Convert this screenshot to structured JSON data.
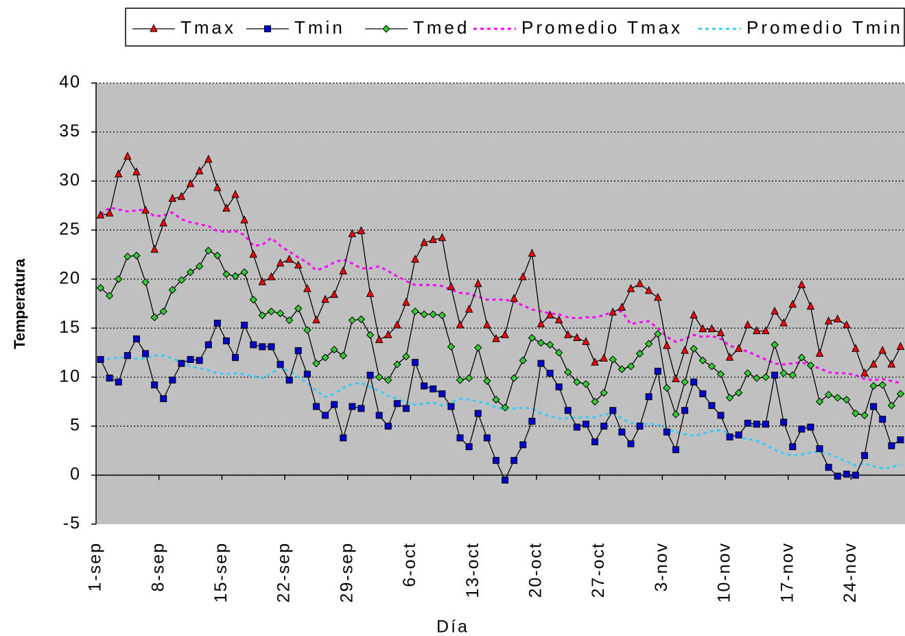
{
  "chart_data": {
    "type": "line",
    "x_label": "Día",
    "y_label": "Temperatura",
    "categories": [
      "1-sep",
      null,
      null,
      null,
      null,
      null,
      null,
      "8-sep",
      null,
      null,
      null,
      null,
      null,
      null,
      "15-sep",
      null,
      null,
      null,
      null,
      null,
      null,
      "22-sep",
      null,
      null,
      null,
      null,
      null,
      null,
      "29-sep",
      null,
      null,
      null,
      null,
      null,
      null,
      "6-oct",
      null,
      null,
      null,
      null,
      null,
      null,
      "13-oct",
      null,
      null,
      null,
      null,
      null,
      null,
      "20-oct",
      null,
      null,
      null,
      null,
      null,
      null,
      "27-oct",
      null,
      null,
      null,
      null,
      null,
      null,
      "3-nov",
      null,
      null,
      null,
      null,
      null,
      null,
      "10-nov",
      null,
      null,
      null,
      null,
      null,
      null,
      "17-nov",
      null,
      null,
      null,
      null,
      null,
      null,
      "24-nov",
      null,
      null,
      null,
      null,
      null
    ],
    "ylim": [
      -5,
      40
    ],
    "yticks": [
      -5,
      0,
      5,
      10,
      15,
      20,
      25,
      30,
      35,
      40
    ],
    "grid": true,
    "plot_background": "#c0c0c0",
    "line_color": "#000000",
    "series": [
      {
        "name": "Tmax",
        "color": "#ff0000",
        "marker": "triangle",
        "values": [
          26.5,
          26.7,
          30.7,
          32.5,
          30.9,
          27.0,
          23.0,
          25.7,
          28.2,
          28.4,
          29.7,
          31.0,
          32.2,
          29.3,
          27.2,
          28.6,
          26.0,
          22.5,
          19.7,
          20.2,
          21.6,
          22.0,
          21.4,
          19.0,
          15.8,
          17.9,
          18.4,
          20.8,
          24.6,
          24.9,
          18.5,
          13.8,
          14.3,
          15.3,
          17.6,
          22.0,
          23.7,
          24.0,
          24.2,
          19.2,
          15.3,
          16.9,
          19.5,
          15.3,
          13.9,
          14.3,
          18.0,
          20.2,
          22.6,
          15.4,
          16.3,
          15.8,
          14.3,
          14.0,
          13.6,
          11.5,
          11.9,
          16.6,
          17.1,
          19.0,
          19.5,
          18.8,
          18.1,
          13.2,
          9.8,
          12.7,
          16.3,
          14.9,
          14.9,
          14.5,
          12.0,
          12.9,
          15.3,
          14.7,
          14.7,
          16.7,
          15.5,
          17.4,
          19.4,
          17.2,
          12.4,
          15.7,
          15.9,
          15.3,
          12.9,
          10.4,
          11.3,
          12.7,
          11.3,
          13.1
        ]
      },
      {
        "name": "Tmin",
        "color": "#0000cc",
        "marker": "square",
        "values": [
          11.8,
          9.9,
          9.5,
          12.2,
          13.9,
          12.4,
          9.2,
          7.8,
          9.7,
          11.4,
          11.8,
          11.7,
          13.3,
          15.5,
          13.7,
          12.0,
          15.3,
          13.3,
          13.1,
          13.1,
          11.3,
          9.7,
          12.7,
          10.3,
          7.0,
          6.1,
          7.2,
          3.8,
          7.0,
          6.8,
          10.2,
          6.1,
          5.0,
          7.3,
          6.8,
          11.5,
          9.1,
          8.8,
          8.3,
          7.0,
          3.8,
          2.9,
          6.3,
          3.8,
          1.5,
          -0.5,
          1.5,
          3.1,
          5.5,
          11.4,
          10.4,
          9.0,
          6.6,
          4.9,
          5.2,
          3.4,
          5.0,
          6.6,
          4.4,
          3.2,
          5.0,
          8.0,
          10.6,
          4.4,
          2.6,
          6.6,
          9.5,
          8.3,
          7.1,
          6.1,
          3.9,
          4.1,
          5.3,
          5.2,
          5.2,
          10.2,
          5.4,
          2.9,
          4.7,
          4.9,
          2.7,
          0.8,
          -0.1,
          0.1,
          0.0,
          2.0,
          7.0,
          5.7,
          3.0,
          3.6
        ]
      },
      {
        "name": "Tmed",
        "color": "#33cc33",
        "marker": "diamond",
        "values": [
          19.1,
          18.3,
          20.0,
          22.3,
          22.4,
          19.7,
          16.1,
          16.7,
          18.9,
          19.9,
          20.7,
          21.3,
          22.9,
          22.4,
          20.5,
          20.3,
          20.7,
          17.9,
          16.3,
          16.7,
          16.5,
          15.8,
          17.0,
          14.8,
          11.4,
          12.0,
          12.8,
          12.2,
          15.8,
          15.9,
          14.3,
          10.0,
          9.7,
          11.3,
          12.1,
          16.7,
          16.4,
          16.4,
          16.3,
          13.1,
          9.7,
          9.9,
          13.0,
          9.6,
          7.7,
          6.9,
          9.9,
          11.7,
          14.0,
          13.5,
          13.3,
          12.5,
          10.5,
          9.5,
          9.3,
          7.5,
          8.4,
          11.8,
          10.8,
          11.1,
          12.4,
          13.4,
          14.4,
          8.9,
          6.2,
          9.5,
          12.9,
          11.7,
          11.1,
          10.3,
          7.9,
          8.4,
          10.4,
          9.9,
          10.0,
          13.3,
          10.4,
          10.2,
          12.0,
          11.2,
          7.5,
          8.2,
          7.9,
          7.7,
          6.3,
          6.1,
          9.1,
          9.2,
          7.1,
          8.3
        ]
      },
      {
        "name": "Promedio Tmax",
        "color": "#ff00ff",
        "dashed": true,
        "values": [
          26.6,
          27.3,
          27.1,
          26.9,
          27.0,
          27.1,
          26.4,
          26.5,
          26.8,
          26.1,
          25.8,
          25.6,
          25.4,
          24.9,
          24.8,
          24.9,
          24.5,
          23.4,
          23.5,
          24.2,
          23.4,
          22.8,
          22.2,
          21.7,
          20.9,
          21.2,
          21.7,
          22.0,
          21.6,
          21.1,
          21.1,
          21.3,
          20.8,
          20.3,
          19.8,
          19.4,
          19.4,
          19.4,
          19.3,
          18.9,
          18.6,
          18.5,
          18.2,
          17.9,
          17.9,
          17.9,
          17.7,
          17.3,
          16.9,
          16.7,
          16.5,
          16.4,
          16.1,
          16.0,
          16.1,
          16.1,
          16.3,
          16.7,
          16.7,
          15.4,
          15.6,
          15.7,
          15.0,
          14.1,
          13.6,
          13.9,
          14.3,
          14.1,
          14.2,
          13.9,
          13.2,
          12.9,
          12.6,
          12.2,
          11.8,
          11.4,
          11.3,
          11.4,
          11.5,
          11.2,
          10.9,
          10.5,
          10.4,
          10.4,
          10.2,
          9.8,
          9.7,
          9.8,
          9.6,
          9.4
        ]
      },
      {
        "name": "Promedio Tmin",
        "color": "#33ccff",
        "dashed": true,
        "values": [
          11.6,
          11.9,
          12.0,
          12.0,
          11.9,
          11.9,
          12.2,
          12.2,
          11.9,
          11.5,
          11.1,
          10.9,
          10.7,
          10.4,
          10.3,
          10.4,
          10.3,
          10.1,
          9.9,
          10.4,
          11.0,
          10.6,
          10.0,
          9.4,
          8.6,
          8.0,
          8.3,
          8.9,
          9.3,
          9.4,
          9.0,
          8.6,
          8.1,
          7.8,
          7.4,
          7.2,
          7.3,
          7.4,
          7.1,
          7.4,
          7.8,
          7.7,
          7.5,
          7.3,
          6.9,
          6.7,
          6.8,
          6.9,
          6.8,
          6.3,
          6.0,
          5.8,
          5.8,
          5.9,
          5.9,
          5.9,
          6.2,
          6.3,
          5.8,
          5.3,
          5.3,
          5.2,
          5.2,
          4.7,
          4.4,
          4.2,
          4.0,
          4.2,
          4.5,
          4.6,
          4.2,
          3.8,
          3.7,
          3.5,
          3.1,
          2.6,
          2.2,
          2.0,
          2.1,
          2.3,
          2.4,
          2.2,
          1.8,
          1.4,
          1.0,
          1.2,
          0.9,
          0.7,
          0.8,
          1.1
        ]
      }
    ]
  }
}
